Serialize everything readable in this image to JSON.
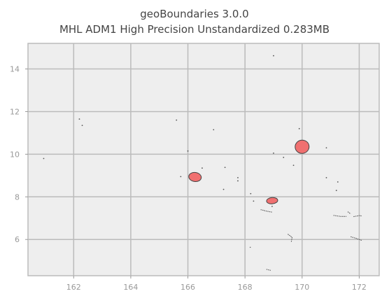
{
  "title_line1": "geoBoundaries 3.0.0",
  "title_line2": "MHL ADM1 High Precision Unstandardized 0.283MB",
  "chart_data": {
    "type": "map",
    "xlim": [
      160.4,
      172.7
    ],
    "ylim": [
      4.3,
      15.2
    ],
    "grid": true,
    "x_ticks": [
      162,
      164,
      166,
      168,
      170,
      172
    ],
    "y_ticks": [
      6,
      8,
      10,
      12,
      14
    ],
    "colors": {
      "background": "#eeeeee",
      "grid": "#bbbbbb",
      "fill": "#f07070",
      "edge": "#444444",
      "islet": "#555555"
    },
    "filled_atolls": [
      {
        "lon": 170.0,
        "lat": 10.35
      },
      {
        "lon": 166.25,
        "lat": 8.93
      },
      {
        "lon": 168.95,
        "lat": 7.82
      }
    ],
    "islets": [
      [
        169.0,
        14.62
      ],
      [
        162.2,
        11.65
      ],
      [
        162.3,
        11.35
      ],
      [
        165.6,
        11.6
      ],
      [
        166.9,
        11.15
      ],
      [
        169.9,
        11.2
      ],
      [
        170.85,
        10.3
      ],
      [
        166.0,
        10.15
      ],
      [
        169.0,
        10.05
      ],
      [
        169.35,
        9.85
      ],
      [
        169.7,
        9.48
      ],
      [
        166.5,
        9.35
      ],
      [
        167.3,
        9.38
      ],
      [
        165.75,
        8.95
      ],
      [
        167.75,
        8.9
      ],
      [
        167.75,
        8.75
      ],
      [
        170.85,
        8.9
      ],
      [
        171.25,
        8.7
      ],
      [
        168.2,
        8.15
      ],
      [
        167.25,
        8.35
      ],
      [
        171.2,
        8.3
      ],
      [
        168.3,
        7.8
      ],
      [
        168.95,
        7.55
      ],
      [
        160.95,
        9.8
      ]
    ],
    "chains": [
      [
        [
          168.55,
          7.4
        ],
        [
          168.75,
          7.33
        ],
        [
          168.95,
          7.28
        ]
      ],
      [
        [
          171.1,
          7.13
        ],
        [
          171.35,
          7.08
        ],
        [
          171.55,
          7.08
        ]
      ],
      [
        [
          171.8,
          7.07
        ],
        [
          172.0,
          7.12
        ],
        [
          172.1,
          7.1
        ]
      ],
      [
        [
          171.6,
          7.3
        ],
        [
          171.7,
          7.2
        ]
      ],
      [
        [
          169.5,
          6.25
        ],
        [
          169.65,
          6.1
        ],
        [
          169.62,
          5.88
        ]
      ],
      [
        [
          171.7,
          6.13
        ],
        [
          171.9,
          6.05
        ],
        [
          172.1,
          5.95
        ]
      ],
      [
        [
          168.2,
          5.65
        ],
        [
          168.15,
          5.6
        ]
      ],
      [
        [
          168.75,
          4.6
        ],
        [
          168.9,
          4.55
        ]
      ]
    ]
  }
}
